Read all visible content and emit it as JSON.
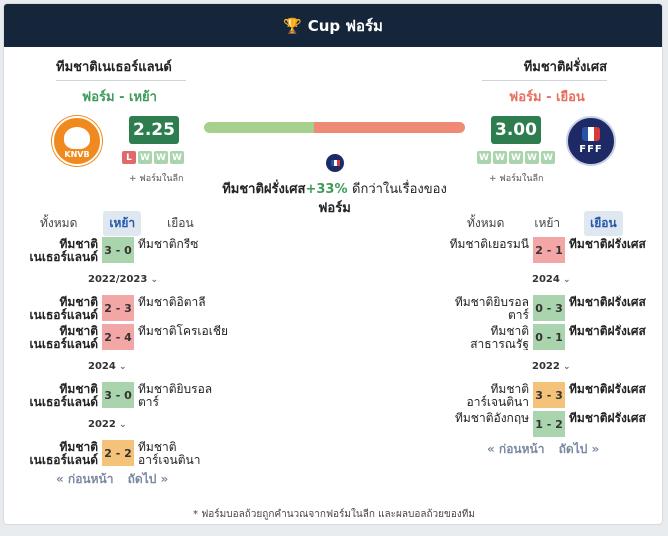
{
  "header": {
    "title": "Cup ฟอร์ม",
    "icon": "trophy-icon"
  },
  "home_team": {
    "name": "ทีมชาติเนเธอร์แลนด์",
    "form_label": "ฟอร์ม - เหย้า",
    "score": "2.25",
    "form": [
      "L",
      "W",
      "W",
      "W"
    ],
    "league_note": "+ ฟอร์มในลีก",
    "tabs": [
      "ทั้งหมด",
      "เหย้า",
      "เยือน"
    ],
    "active_tab": 1
  },
  "away_team": {
    "name": "ทีมชาติฝรั่งเศส",
    "form_label": "ฟอร์ม - เยือน",
    "score": "3.00",
    "form": [
      "W",
      "W",
      "W",
      "W",
      "W"
    ],
    "league_note": "+ ฟอร์มในลีก",
    "tabs": [
      "ทั้งหมด",
      "เหย้า",
      "เยือน"
    ],
    "active_tab": 2
  },
  "comparison": {
    "home_share": 0.42,
    "summary_team": "ทีมชาติฝรั่งเศส",
    "summary_pct": "+33%",
    "summary_rest": "ดีกว่าในเรื่องของ",
    "summary_end": "ฟอร์ม"
  },
  "left_matches": [
    {
      "home": "ทีมชาติเนเธอร์แลนด์",
      "score": "3 - 0",
      "away": "ทีมชาติกรีซ",
      "result": "w"
    },
    {
      "year": "2022/2023"
    },
    {
      "home": "ทีมชาติเนเธอร์แลนด์",
      "score": "2 - 3",
      "away": "ทีมชาติอิตาลี",
      "result": "l"
    },
    {
      "home": "ทีมชาติเนเธอร์แลนด์",
      "score": "2 - 4",
      "away": "ทีมชาติโครเอเชีย",
      "result": "l"
    },
    {
      "year": "2024"
    },
    {
      "home": "ทีมชาติเนเธอร์แลนด์",
      "score": "3 - 0",
      "away": "ทีมชาติยิบรอลตาร์",
      "result": "w"
    },
    {
      "year": "2022"
    },
    {
      "home": "ทีมชาติเนเธอร์แลนด์",
      "score": "2 - 2",
      "away": "ทีมชาติอาร์เจนตินา",
      "result": "d"
    }
  ],
  "right_matches": [
    {
      "home": "ทีมชาติเยอรมนี",
      "score": "2 - 1",
      "away": "ทีมชาติฝรั่งเศส",
      "result": "l"
    },
    {
      "year": "2024"
    },
    {
      "home": "ทีมชาติยิบรอลตาร์",
      "score": "0 - 3",
      "away": "ทีมชาติฝรั่งเศส",
      "result": "w"
    },
    {
      "home": "ทีมชาติสาธารณรัฐ",
      "score": "0 - 1",
      "away": "ทีมชาติฝรั่งเศส",
      "result": "w"
    },
    {
      "year": "2022"
    },
    {
      "home": "ทีมชาติอาร์เจนตินา",
      "score": "3 - 3",
      "away": "ทีมชาติฝรั่งเศส",
      "result": "d"
    },
    {
      "home": "ทีมชาติอังกฤษ",
      "score": "1 - 2",
      "away": "ทีมชาติฝรั่งเศส",
      "result": "w"
    }
  ],
  "pager": {
    "prev": "« ก่อนหน้า",
    "next": "ถัดไป »"
  },
  "footnote": "* ฟอร์มบอลถ้วยถูกคำนวณจากฟอร์มในลีก และผลบอลถ้วยของทีม",
  "colors": {
    "win": "#a9d4ae",
    "loss": "#f3a6a6",
    "draw": "#f5c27a",
    "header": "#15253a"
  }
}
